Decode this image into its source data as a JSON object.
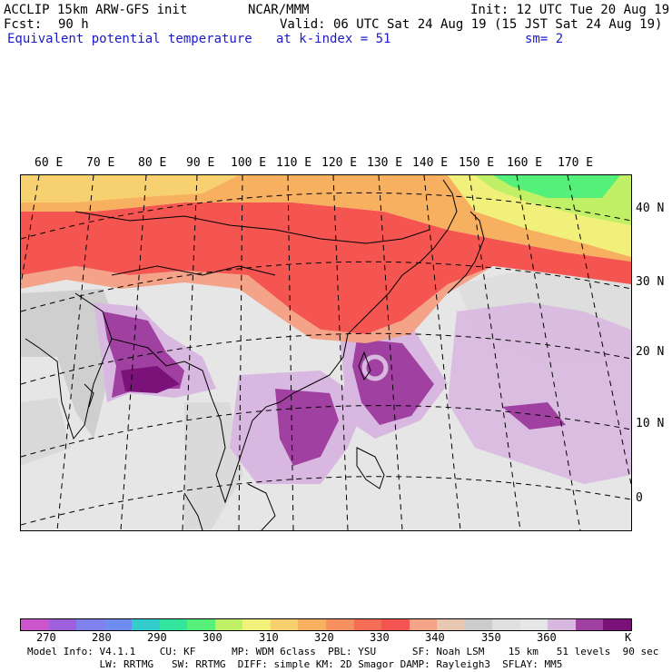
{
  "header": {
    "model": "ACCLIP 15km ARW-GFS init",
    "org": "NCAR/MMM",
    "init": "Init: 12 UTC Tue 20 Aug 19",
    "fcst_label": "Fcst:",
    "fcst_value": "90 h",
    "valid": "Valid: 06 UTC Sat 24 Aug 19 (15 JST Sat 24 Aug 19)",
    "field": "Equivalent potential temperature",
    "level": "at k-index = 51",
    "smoothing": "sm= 2"
  },
  "map": {
    "lon_labels": [
      "60 E",
      "70 E",
      "80 E",
      "90 E",
      "100 E",
      "110 E",
      "120 E",
      "130 E",
      "140 E",
      "150 E",
      "160 E",
      "170 E"
    ],
    "lat_labels": [
      "40 N",
      "30 N",
      "20 N",
      "10 N",
      "0"
    ]
  },
  "colorbar": {
    "colors": [
      "#cc55cc",
      "#a060dd",
      "#8080ee",
      "#6f8cf0",
      "#33cccc",
      "#33e6a0",
      "#55f07a",
      "#bff066",
      "#f0f07a",
      "#f7d070",
      "#f7b060",
      "#f79060",
      "#f46e55",
      "#f45550",
      "#f4a288",
      "#e8c8b0",
      "#cccccc",
      "#e0e0e0",
      "#e6e6e6",
      "#d8b8e0",
      "#a040a0",
      "#7a127a"
    ],
    "labels": [
      "270",
      "280",
      "290",
      "300",
      "310",
      "320",
      "330",
      "340",
      "350",
      "360",
      "K"
    ]
  },
  "footer": {
    "line1": "Model Info: V4.1.1    CU: KF      MP: WDM 6class  PBL: YSU      SF: Noah LSM    15 km   51 levels  90 sec",
    "line2": "            LW: RRTMG   SW: RRTMG  DIFF: simple KM: 2D Smagor DAMP: Rayleigh3  SFLAY: MM5"
  }
}
